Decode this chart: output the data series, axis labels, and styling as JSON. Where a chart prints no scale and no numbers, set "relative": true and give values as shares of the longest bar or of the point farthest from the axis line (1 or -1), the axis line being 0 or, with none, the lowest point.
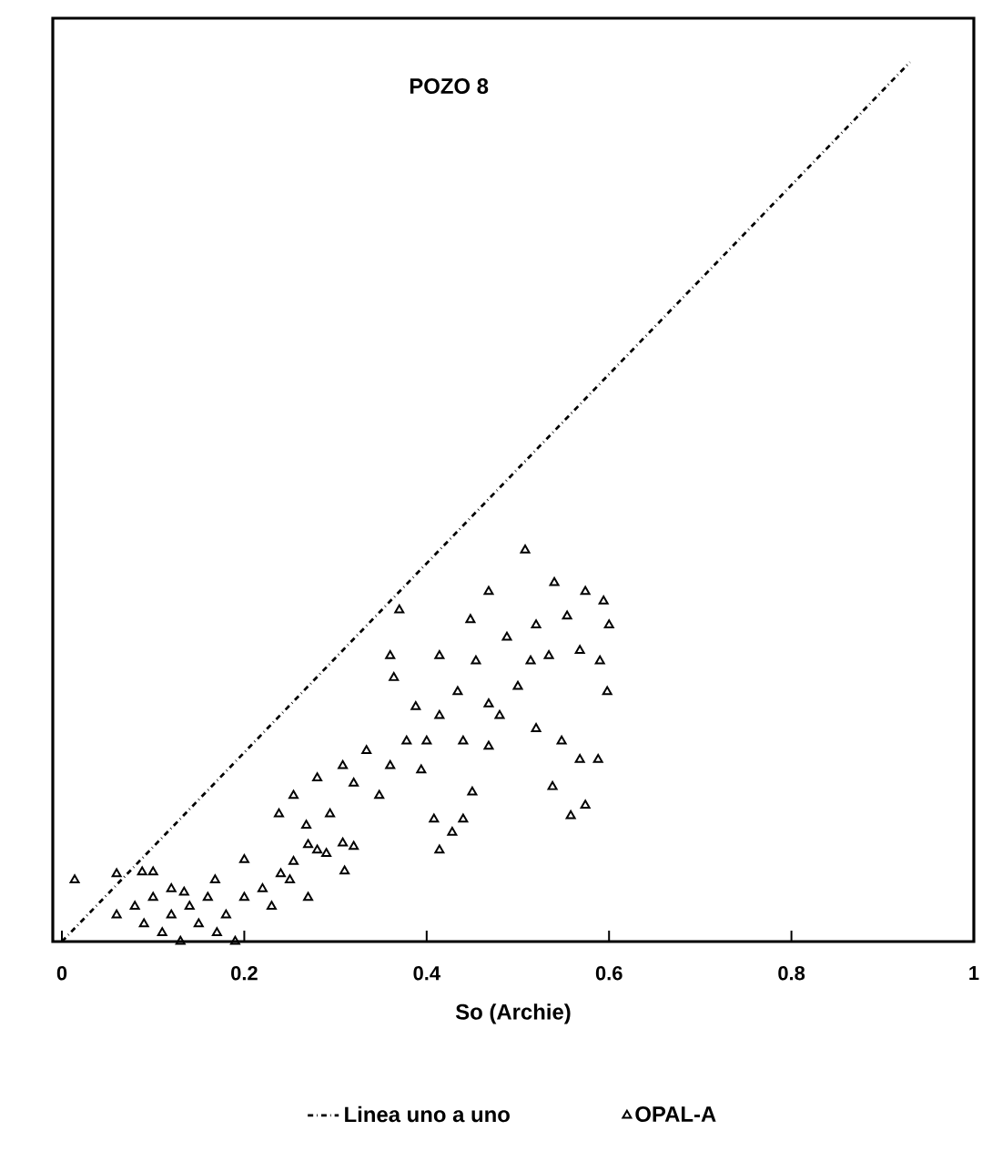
{
  "chart_data": {
    "type": "scatter",
    "title": "POZO 8",
    "xlabel": "So (Archie)",
    "xlim": [
      -0.01,
      1
    ],
    "xticks": [
      0,
      0.2,
      0.4,
      0.6,
      0.8,
      1
    ],
    "relative": true,
    "legend": "bottom",
    "series": [
      {
        "name": "Linea uno a uno",
        "type": "line",
        "color": "#000000",
        "line_style": "dashdot",
        "marker": "none",
        "x": [
          0,
          0.93
        ],
        "values": [
          0,
          1
        ]
      },
      {
        "name": "OPAL-A",
        "color": "#000000",
        "marker": "triangle",
        "x": [
          0.014,
          0.06,
          0.088,
          0.1,
          0.2,
          0.238,
          0.254,
          0.28,
          0.308,
          0.334,
          0.36,
          0.37,
          0.36,
          0.364,
          0.388,
          0.394,
          0.378,
          0.414,
          0.448,
          0.468,
          0.508,
          0.54,
          0.574,
          0.594,
          0.6,
          0.598,
          0.59,
          0.554,
          0.52,
          0.488,
          0.454,
          0.434,
          0.4,
          0.414,
          0.468,
          0.5,
          0.52,
          0.548,
          0.568,
          0.588,
          0.538,
          0.574,
          0.558,
          0.45,
          0.44,
          0.414,
          0.408,
          0.428,
          0.468,
          0.48,
          0.514,
          0.534,
          0.568,
          0.44,
          0.348,
          0.32,
          0.294,
          0.268,
          0.308,
          0.28,
          0.254,
          0.32,
          0.24,
          0.168,
          0.134,
          0.08,
          0.09,
          0.1,
          0.11,
          0.12,
          0.13,
          0.14,
          0.15,
          0.16,
          0.17,
          0.18,
          0.19,
          0.2,
          0.22,
          0.23,
          0.25,
          0.27,
          0.29,
          0.31,
          0.27,
          0.06,
          0.12
        ],
        "values": [
          0.07,
          0.077,
          0.079,
          0.079,
          0.093,
          0.145,
          0.166,
          0.186,
          0.2,
          0.217,
          0.2,
          0.377,
          0.325,
          0.3,
          0.267,
          0.195,
          0.228,
          0.325,
          0.366,
          0.398,
          0.445,
          0.408,
          0.398,
          0.387,
          0.36,
          0.284,
          0.319,
          0.37,
          0.36,
          0.346,
          0.319,
          0.284,
          0.228,
          0.257,
          0.27,
          0.29,
          0.242,
          0.228,
          0.207,
          0.207,
          0.176,
          0.155,
          0.143,
          0.17,
          0.139,
          0.104,
          0.139,
          0.124,
          0.222,
          0.257,
          0.319,
          0.325,
          0.331,
          0.228,
          0.166,
          0.18,
          0.145,
          0.132,
          0.112,
          0.104,
          0.091,
          0.108,
          0.077,
          0.07,
          0.056,
          0.04,
          0.02,
          0.05,
          0.01,
          0.03,
          0.0,
          0.04,
          0.02,
          0.05,
          0.01,
          0.03,
          0.0,
          0.05,
          0.06,
          0.04,
          0.07,
          0.05,
          0.1,
          0.08,
          0.11,
          0.03,
          0.06
        ]
      }
    ]
  }
}
